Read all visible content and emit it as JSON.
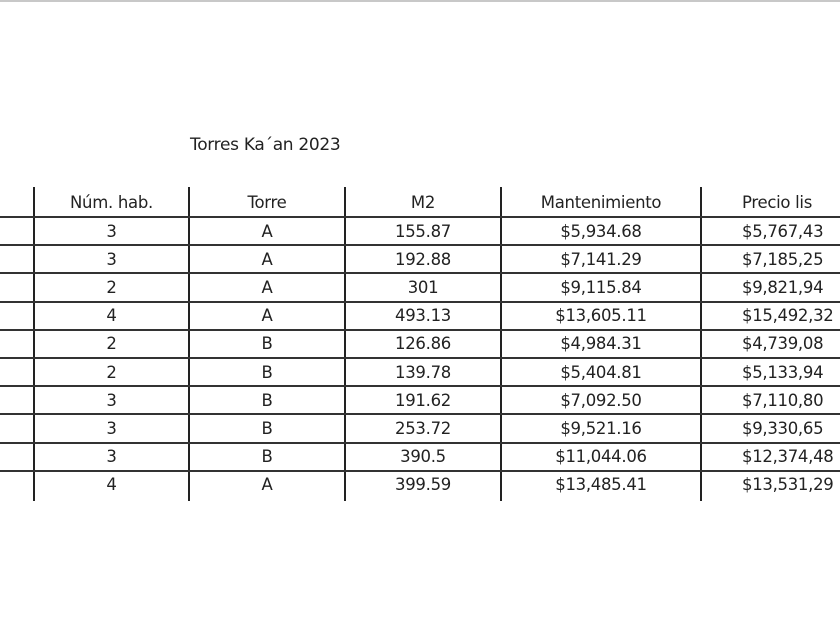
{
  "title": "Torres Ka´an 2023",
  "table": {
    "headers": [
      "Núm. hab.",
      "Torre",
      "M2",
      "Mantenimiento",
      "Precio lis"
    ],
    "rows": [
      [
        "3",
        "A",
        "155.87",
        "$5,934.68",
        "$5,767,43"
      ],
      [
        "3",
        "A",
        "192.88",
        "$7,141.29",
        "$7,185,25"
      ],
      [
        "2",
        "A",
        "301",
        "$9,115.84",
        "$9,821,94"
      ],
      [
        "4",
        "A",
        "493.13",
        "$13,605.11",
        "$15,492,32"
      ],
      [
        "2",
        "B",
        "126.86",
        "$4,984.31",
        "$4,739,08"
      ],
      [
        "2",
        "B",
        "139.78",
        "$5,404.81",
        "$5,133,94"
      ],
      [
        "3",
        "B",
        "191.62",
        "$7,092.50",
        "$7,110,80"
      ],
      [
        "3",
        "B",
        "253.72",
        "$9,521.16",
        "$9,330,65"
      ],
      [
        "3",
        "B",
        "390.5",
        "$11,044.06",
        "$12,374,48"
      ],
      [
        "4",
        "A",
        "399.59",
        "$13,485.41",
        "$13,531,29"
      ]
    ]
  }
}
